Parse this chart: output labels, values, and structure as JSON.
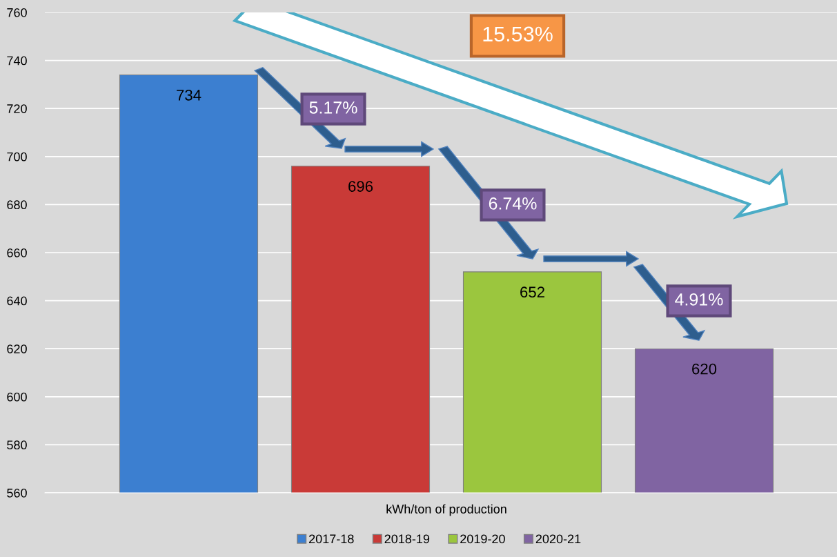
{
  "chart_data": {
    "type": "bar",
    "categories": [
      "kWh/ton of production"
    ],
    "series": [
      {
        "name": "2017-18",
        "color": "#3c7fd0",
        "values": [
          734
        ]
      },
      {
        "name": "2018-19",
        "color": "#c93a37",
        "values": [
          696
        ]
      },
      {
        "name": "2019-20",
        "color": "#9bc63e",
        "values": [
          652
        ]
      },
      {
        "name": "2020-21",
        "color": "#8064a2",
        "values": [
          620
        ]
      }
    ],
    "ylim": [
      560,
      760
    ],
    "yticks": [
      560,
      580,
      600,
      620,
      640,
      660,
      680,
      700,
      720,
      740,
      760
    ],
    "grid": "y",
    "legend": "bottom",
    "data_labels": true,
    "annotations": [
      "15.53%",
      "5.17%",
      "6.74%",
      "4.91%"
    ]
  }
}
